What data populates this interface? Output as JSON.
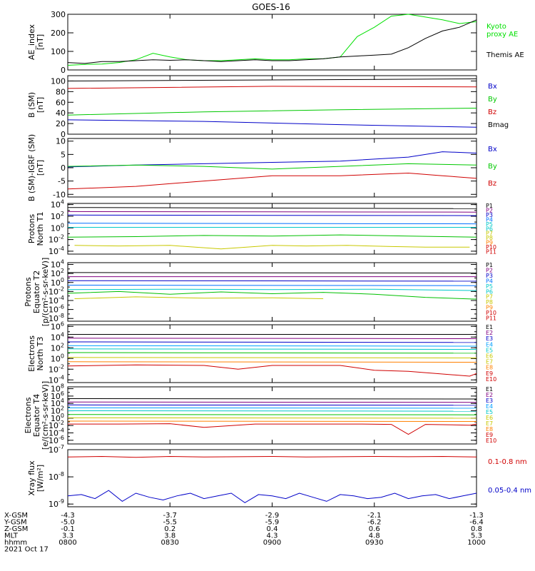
{
  "title": "GOES-16",
  "chart_data": [
    {
      "type": "line",
      "ylabel": "AE_index\n[nT]",
      "ylim": [
        0,
        300
      ],
      "yticks": [
        "0",
        "100",
        "200",
        "300"
      ],
      "legend": [
        {
          "name": "Kyoto\nproxy AE",
          "color": "#00e000"
        },
        {
          "name": "Themis AE",
          "color": "#000000"
        }
      ],
      "series": [
        {
          "name": "Kyoto proxy AE",
          "color": "#00e000",
          "x": [
            0,
            5,
            10,
            15,
            20,
            25,
            30,
            35,
            40,
            45,
            50,
            55,
            60,
            65,
            70,
            75,
            80,
            85,
            90,
            95,
            100,
            105,
            110,
            115,
            120
          ],
          "values": [
            25,
            30,
            32,
            40,
            55,
            90,
            70,
            55,
            50,
            50,
            55,
            60,
            55,
            55,
            60,
            60,
            70,
            180,
            230,
            290,
            300,
            285,
            270,
            250,
            260
          ]
        },
        {
          "name": "Themis AE",
          "color": "#000000",
          "x": [
            0,
            5,
            10,
            15,
            20,
            25,
            30,
            35,
            40,
            45,
            50,
            55,
            60,
            65,
            70,
            75,
            80,
            85,
            90,
            95,
            100,
            105,
            110,
            115,
            120
          ],
          "values": [
            40,
            35,
            45,
            45,
            50,
            55,
            52,
            55,
            50,
            45,
            50,
            55,
            50,
            50,
            55,
            60,
            70,
            75,
            80,
            85,
            120,
            170,
            210,
            230,
            270
          ]
        }
      ]
    },
    {
      "type": "line",
      "ylabel": "B (SM)\n[nT]",
      "ylim": [
        0,
        110
      ],
      "yticks": [
        "0",
        "20",
        "40",
        "60",
        "80",
        "100"
      ],
      "legend": [
        {
          "name": "Bx",
          "color": "#0000c8"
        },
        {
          "name": "By",
          "color": "#00c800"
        },
        {
          "name": "Bz",
          "color": "#d00000"
        },
        {
          "name": "Bmag",
          "color": "#000000"
        }
      ],
      "series": [
        {
          "name": "Bmag",
          "color": "#000000",
          "x": [
            0,
            120
          ],
          "values": [
            100,
            104
          ]
        },
        {
          "name": "Bz",
          "color": "#d00000",
          "x": [
            0,
            60,
            120
          ],
          "values": [
            86,
            90,
            89
          ]
        },
        {
          "name": "By",
          "color": "#00c800",
          "x": [
            0,
            40,
            80,
            120
          ],
          "values": [
            36,
            42,
            46,
            49
          ]
        },
        {
          "name": "Bx",
          "color": "#0000c8",
          "x": [
            0,
            40,
            80,
            120
          ],
          "values": [
            27,
            24,
            18,
            13
          ]
        }
      ]
    },
    {
      "type": "line",
      "ylabel": "B (SM)-IGRF (SM)\n[nT]",
      "ylim": [
        -11,
        11
      ],
      "yticks": [
        "-10",
        "-5",
        "0",
        "5",
        "10"
      ],
      "legend": [
        {
          "name": "Bx",
          "color": "#0000c8"
        },
        {
          "name": "By",
          "color": "#00c800"
        },
        {
          "name": "Bz",
          "color": "#d00000"
        }
      ],
      "series": [
        {
          "name": "Bx",
          "color": "#0000c8",
          "x": [
            0,
            20,
            40,
            60,
            80,
            100,
            110,
            120
          ],
          "values": [
            0.3,
            1,
            1.5,
            2,
            2.5,
            4,
            6,
            5.5
          ]
        },
        {
          "name": "By",
          "color": "#00c800",
          "x": [
            0,
            20,
            40,
            60,
            80,
            100,
            120
          ],
          "values": [
            0.5,
            1,
            0.5,
            -0.5,
            0.5,
            1.5,
            1
          ]
        },
        {
          "name": "Bz",
          "color": "#d00000",
          "x": [
            0,
            10,
            20,
            40,
            60,
            80,
            100,
            110,
            120
          ],
          "values": [
            -8,
            -7.5,
            -7,
            -5,
            -3,
            -3,
            -2,
            -3,
            -4
          ]
        }
      ]
    },
    {
      "type": "line",
      "ylabel": "Protons\nNorth T1",
      "ylog": true,
      "yticks": [
        "10^-4",
        "10^-2",
        "10^0",
        "10^2",
        "10^4"
      ],
      "ylog_range": [
        -4.5,
        4.2
      ],
      "legend": [
        "P1",
        "P2",
        "P3",
        "P4",
        "P5",
        "P6",
        "P7",
        "P8",
        "P9",
        "P10",
        "P11"
      ],
      "series": [
        {
          "name": "P1",
          "color": "#000000",
          "x": [
            0,
            120
          ],
          "values": [
            3.5,
            3.3
          ]
        },
        {
          "name": "P2",
          "color": "#800080",
          "x": [
            0,
            120
          ],
          "values": [
            2.8,
            2.7
          ]
        },
        {
          "name": "P3",
          "color": "#0000c8",
          "x": [
            0,
            120
          ],
          "values": [
            2.2,
            2.1
          ]
        },
        {
          "name": "P4",
          "color": "#0070ff",
          "x": [
            0,
            120
          ],
          "values": [
            0.8,
            0.7
          ]
        },
        {
          "name": "P5",
          "color": "#00c8c8",
          "x": [
            0,
            120
          ],
          "values": [
            0.1,
            0.1
          ]
        },
        {
          "name": "P6",
          "color": "#00c000",
          "x": [
            0,
            20,
            40,
            60,
            80,
            100,
            120
          ],
          "values": [
            -1.6,
            -1.5,
            -1.3,
            -1.4,
            -1.2,
            -1.4,
            -1.6
          ]
        },
        {
          "name": "P7",
          "color": "#c8c800",
          "x": [
            2,
            15,
            30,
            45,
            60,
            70,
            82,
            95,
            105,
            118
          ],
          "values": [
            -3,
            -3.1,
            -3,
            -3.6,
            -3,
            -3.1,
            -3,
            -3.2,
            -3.3,
            -3.3
          ]
        }
      ]
    },
    {
      "type": "line",
      "ylabel": "Protons\nEquator T2\n[p/(cm²-s-sr-keV)]",
      "ylog": true,
      "yticks": [
        "10^-8",
        "10^-6",
        "10^-4",
        "10^-2",
        "10^0",
        "10^2",
        "10^4"
      ],
      "ylog_range": [
        -8.6,
        4.4
      ],
      "legend": [
        "P1",
        "P2",
        "P3",
        "P4",
        "P5",
        "P6",
        "P7",
        "P8",
        "P9",
        "P10",
        "P11"
      ],
      "series": [
        {
          "name": "P1",
          "color": "#000000",
          "x": [
            0,
            120
          ],
          "values": [
            2.2,
            2.1
          ]
        },
        {
          "name": "P2",
          "color": "#800080",
          "x": [
            0,
            120
          ],
          "values": [
            1.3,
            1.3
          ]
        },
        {
          "name": "P3",
          "color": "#0000c8",
          "x": [
            0,
            120
          ],
          "values": [
            0.4,
            0.3
          ]
        },
        {
          "name": "P4",
          "color": "#0070ff",
          "x": [
            0,
            120
          ],
          "values": [
            -0.6,
            -0.7
          ]
        },
        {
          "name": "P5",
          "color": "#00c8c8",
          "x": [
            0,
            30,
            60,
            90,
            120
          ],
          "values": [
            -1.6,
            -1.5,
            -1.6,
            -1.5,
            -1.8
          ]
        },
        {
          "name": "P6",
          "color": "#00c000",
          "x": [
            0,
            15,
            30,
            45,
            60,
            75,
            90,
            105,
            120
          ],
          "values": [
            -2.4,
            -2.0,
            -2.6,
            -2.1,
            -2.5,
            -2.2,
            -2.6,
            -3.3,
            -3.7
          ]
        },
        {
          "name": "P7",
          "color": "#c8c800",
          "x": [
            2,
            20,
            40,
            60,
            75
          ],
          "values": [
            -3.6,
            -3.2,
            -3.5,
            -3.4,
            -3.6
          ]
        }
      ]
    },
    {
      "type": "line",
      "ylabel": "Electrons\nNorth T3",
      "ylog": true,
      "yticks": [
        "10^-4",
        "10^-2",
        "10^0",
        "10^2",
        "10^4",
        "10^6"
      ],
      "ylog_range": [
        -4.5,
        6.3
      ],
      "legend": [
        "E1",
        "E2",
        "E3",
        "E4",
        "E5",
        "E6",
        "E7",
        "E8",
        "E9",
        "E10"
      ],
      "series": [
        {
          "name": "E1",
          "color": "#000000",
          "x": [
            0,
            120
          ],
          "values": [
            4.5,
            4.5
          ]
        },
        {
          "name": "E2",
          "color": "#800080",
          "x": [
            0,
            120
          ],
          "values": [
            3.8,
            3.7
          ]
        },
        {
          "name": "E3",
          "color": "#0000c8",
          "x": [
            0,
            120
          ],
          "values": [
            3.1,
            3.0
          ]
        },
        {
          "name": "E4",
          "color": "#00a0ff",
          "x": [
            0,
            120
          ],
          "values": [
            2.4,
            2.3
          ]
        },
        {
          "name": "E5",
          "color": "#00c8c8",
          "x": [
            0,
            120
          ],
          "values": [
            1.8,
            1.7
          ]
        },
        {
          "name": "E6",
          "color": "#00c000",
          "x": [
            0,
            120
          ],
          "values": [
            1.1,
            1.0
          ]
        },
        {
          "name": "E7",
          "color": "#c8c800",
          "x": [
            0,
            120
          ],
          "values": [
            0.2,
            0.1
          ]
        },
        {
          "name": "E8",
          "color": "#ff8000",
          "x": [
            0,
            120
          ],
          "values": [
            -0.6,
            -0.7
          ]
        },
        {
          "name": "E9",
          "color": "#d00000",
          "x": [
            0,
            20,
            40,
            50,
            60,
            80,
            90,
            100,
            118,
            120
          ],
          "values": [
            -1.4,
            -1.2,
            -1.3,
            -2.0,
            -1.3,
            -1.3,
            -2.2,
            -2.4,
            -3.3,
            -2.8
          ]
        }
      ]
    },
    {
      "type": "line",
      "ylabel": "Electrons\nEquator T4\n[e/(cm²-s-sr-keV)]",
      "ylog": true,
      "yticks": [
        "10^-6",
        "10^-4",
        "10^-2",
        "10^0",
        "10^2",
        "10^4",
        "10^6",
        "10^8"
      ],
      "ylog_range": [
        -7,
        8.5
      ],
      "legend": [
        "E1",
        "E2",
        "E3",
        "E4",
        "E5",
        "E6",
        "E7",
        "E8",
        "E9",
        "E10"
      ],
      "series": [
        {
          "name": "E1",
          "color": "#000000",
          "x": [
            0,
            120
          ],
          "values": [
            5.3,
            5.2
          ]
        },
        {
          "name": "E2",
          "color": "#800080",
          "x": [
            0,
            120
          ],
          "values": [
            4.4,
            4.3
          ]
        },
        {
          "name": "E3",
          "color": "#0000c8",
          "x": [
            0,
            120
          ],
          "values": [
            3.6,
            3.5
          ]
        },
        {
          "name": "E4",
          "color": "#00a0ff",
          "x": [
            0,
            120
          ],
          "values": [
            2.8,
            2.7
          ]
        },
        {
          "name": "E5",
          "color": "#00c8c8",
          "x": [
            0,
            120
          ],
          "values": [
            2.0,
            1.9
          ]
        },
        {
          "name": "E6",
          "color": "#00c000",
          "x": [
            0,
            120
          ],
          "values": [
            1.0,
            0.9
          ]
        },
        {
          "name": "E7",
          "color": "#c8c800",
          "x": [
            0,
            120
          ],
          "values": [
            0.1,
            0.0
          ]
        },
        {
          "name": "E8",
          "color": "#ff8000",
          "x": [
            0,
            120
          ],
          "values": [
            -0.8,
            -0.9
          ]
        },
        {
          "name": "E9",
          "color": "#d00000",
          "x": [
            0,
            15,
            30,
            40,
            55,
            70,
            85,
            95,
            100,
            105,
            118,
            120
          ],
          "values": [
            -1.6,
            -1.6,
            -1.5,
            -2.5,
            -1.6,
            -1.6,
            -1.6,
            -1.7,
            -4.4,
            -1.7,
            -1.9,
            -1.6
          ]
        }
      ]
    },
    {
      "type": "line",
      "ylabel": "Xray flux\n[W/m²]",
      "ylog": true,
      "yticks": [
        "10^-9",
        "10^-8",
        "10^-7"
      ],
      "ylog_range": [
        -9.1,
        -7.0
      ],
      "legend": [
        {
          "name": "0.1-0.8 nm",
          "color": "#d00000"
        },
        {
          "name": "0.05-0.4 nm",
          "color": "#0000c8"
        }
      ],
      "series": [
        {
          "name": "0.1-0.8 nm",
          "color": "#d00000",
          "x": [
            0,
            10,
            20,
            30,
            40,
            50,
            60,
            70,
            80,
            90,
            100,
            110,
            120
          ],
          "values": [
            -7.27,
            -7.25,
            -7.28,
            -7.25,
            -7.27,
            -7.26,
            -7.25,
            -7.27,
            -7.26,
            -7.25,
            -7.26,
            -7.25,
            -7.27
          ]
        },
        {
          "name": "0.05-0.4 nm",
          "color": "#0000c8",
          "x": [
            0,
            4,
            8,
            12,
            16,
            20,
            24,
            28,
            32,
            36,
            40,
            44,
            48,
            52,
            56,
            60,
            64,
            68,
            72,
            76,
            80,
            84,
            88,
            92,
            96,
            100,
            104,
            108,
            112,
            116,
            120
          ],
          "values": [
            -8.7,
            -8.65,
            -8.8,
            -8.5,
            -8.9,
            -8.6,
            -8.75,
            -8.85,
            -8.7,
            -8.6,
            -8.8,
            -8.7,
            -8.6,
            -8.95,
            -8.65,
            -8.7,
            -8.8,
            -8.6,
            -8.75,
            -8.9,
            -8.65,
            -8.7,
            -8.8,
            -8.75,
            -8.6,
            -8.8,
            -8.7,
            -8.65,
            -8.8,
            -8.7,
            -8.6
          ]
        }
      ]
    }
  ],
  "orbit_table": {
    "labels": [
      "X-GSM",
      "Y-GSM",
      "Z-GSM",
      "MLT",
      "hhmm",
      "2021 Oct 17"
    ],
    "columns": [
      {
        "x": 0,
        "values": [
          "-4.3",
          "-5.0",
          "-0.1",
          "3.3",
          "0800"
        ]
      },
      {
        "x": 30,
        "values": [
          "-3.7",
          "-5.5",
          "0.2",
          "3.8",
          "0830"
        ]
      },
      {
        "x": 60,
        "values": [
          "-2.9",
          "-5.9",
          "0.4",
          "4.3",
          "0900"
        ]
      },
      {
        "x": 90,
        "values": [
          "-2.1",
          "-6.2",
          "0.6",
          "4.8",
          "0930"
        ]
      },
      {
        "x": 120,
        "values": [
          "-1.3",
          "-6.4",
          "0.8",
          "5.3",
          "1000"
        ]
      }
    ]
  }
}
